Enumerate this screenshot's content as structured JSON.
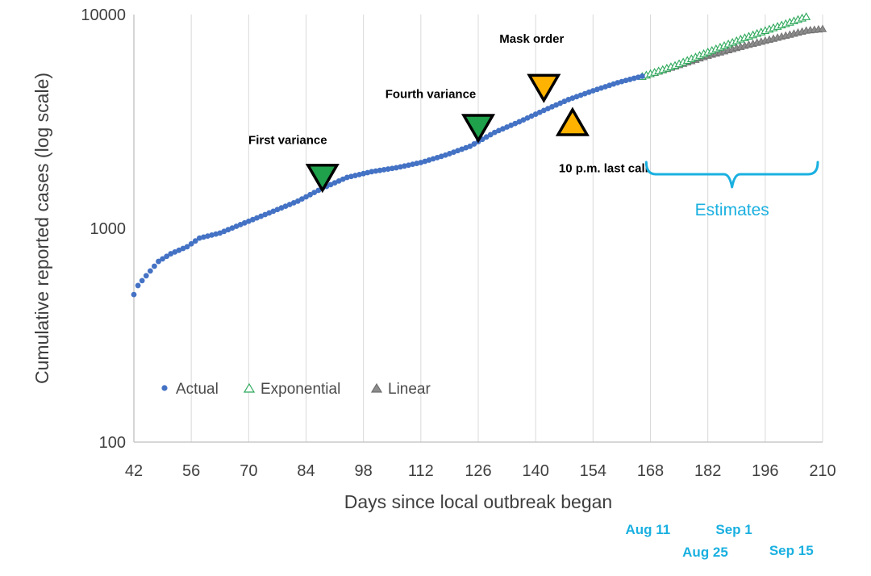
{
  "chart_data": {
    "type": "scatter",
    "xlabel": "Days since local outbreak began",
    "ylabel": "Cumulative reported cases (log scale)",
    "log_scale_y": true,
    "xlim": [
      42,
      210
    ],
    "ylim": [
      100,
      10000
    ],
    "x_ticks": [
      "42",
      "56",
      "70",
      "84",
      "98",
      "112",
      "126",
      "140",
      "154",
      "168",
      "182",
      "196",
      "210"
    ],
    "y_ticks": [
      "100",
      "1000",
      "10000"
    ],
    "grid": "vertical",
    "legend_position": "bottom-left",
    "colors": {
      "actual": "#4472c4",
      "exponential": "#2ca85a",
      "linear": "#8c8c8c",
      "green_marker": "#1fa04b",
      "orange_marker": "#ffb300",
      "estimates": "#1ab0e0"
    },
    "series": [
      {
        "name": "Actual",
        "marker": "circle",
        "anchors": [
          [
            42,
            490
          ],
          [
            43,
            540
          ],
          [
            45,
            600
          ],
          [
            48,
            700
          ],
          [
            51,
            760
          ],
          [
            55,
            820
          ],
          [
            58,
            900
          ],
          [
            63,
            950
          ],
          [
            69,
            1060
          ],
          [
            75,
            1180
          ],
          [
            82,
            1340
          ],
          [
            88,
            1540
          ],
          [
            94,
            1730
          ],
          [
            100,
            1840
          ],
          [
            106,
            1920
          ],
          [
            112,
            2030
          ],
          [
            118,
            2200
          ],
          [
            124,
            2420
          ],
          [
            130,
            2810
          ],
          [
            136,
            3150
          ],
          [
            142,
            3560
          ],
          [
            148,
            4000
          ],
          [
            154,
            4400
          ],
          [
            160,
            4800
          ],
          [
            166,
            5150
          ]
        ]
      },
      {
        "name": "Exponential",
        "marker": "triangle-open",
        "anchors": [
          [
            166,
            5150
          ],
          [
            174,
            5800
          ],
          [
            182,
            6700
          ],
          [
            190,
            7700
          ],
          [
            198,
            8700
          ],
          [
            206,
            9800
          ]
        ]
      },
      {
        "name": "Linear",
        "marker": "triangle-filled",
        "anchors": [
          [
            166,
            5150
          ],
          [
            174,
            5750
          ],
          [
            182,
            6450
          ],
          [
            190,
            7100
          ],
          [
            198,
            7750
          ],
          [
            206,
            8450
          ],
          [
            210,
            8600
          ]
        ]
      }
    ],
    "annotations": [
      {
        "label": "First variance",
        "x": 88,
        "y": 1540,
        "direction": "down",
        "color": "green"
      },
      {
        "label": "Fourth variance",
        "x": 126,
        "y": 2500,
        "direction": "down",
        "color": "green"
      },
      {
        "label": "Mask order",
        "x": 142,
        "y": 3560,
        "direction": "down",
        "color": "orange"
      },
      {
        "label": "10 p.m. last call",
        "x": 149,
        "y": 4000,
        "direction": "up",
        "color": "orange"
      }
    ],
    "estimates_label": "Estimates",
    "estimates_range": [
      166,
      210
    ],
    "dates": [
      {
        "label": "Aug 11",
        "x": 166
      },
      {
        "label": "Aug 25",
        "x": 180
      },
      {
        "label": "Sep 1",
        "x": 187
      },
      {
        "label": "Sep 15",
        "x": 201
      }
    ]
  }
}
